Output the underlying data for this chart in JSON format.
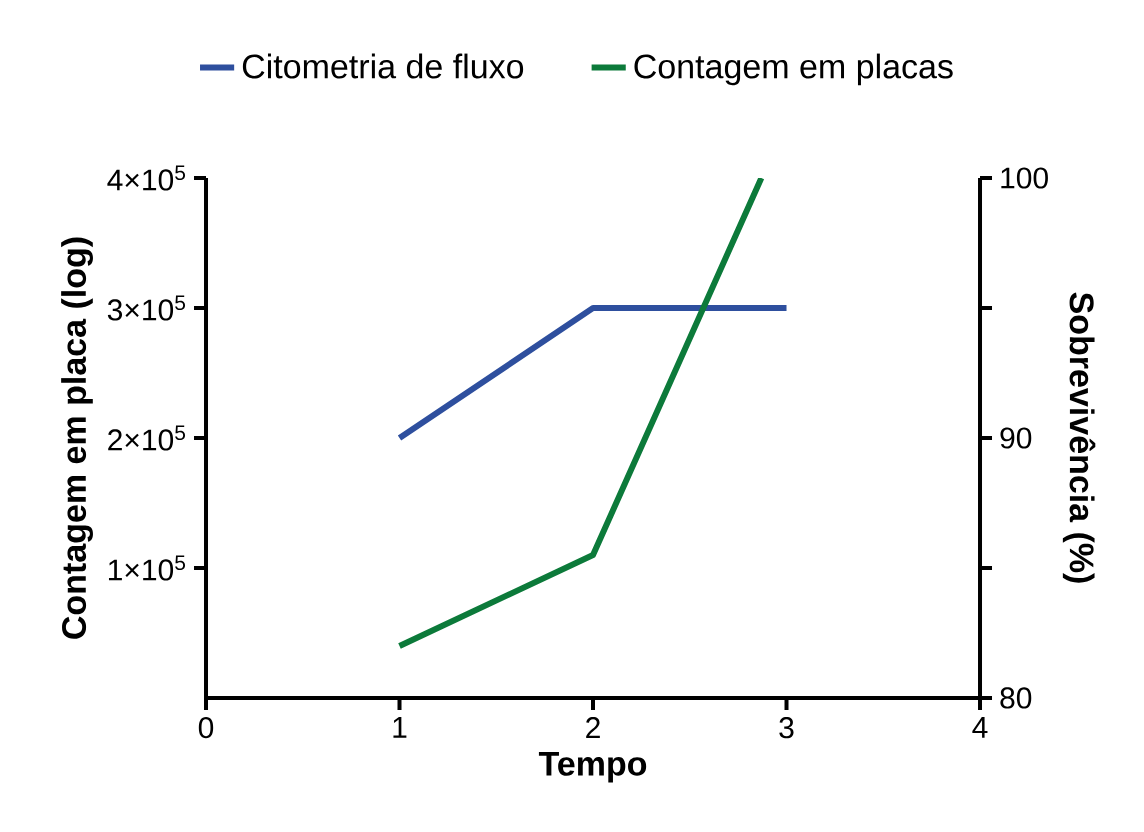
{
  "chart_data": {
    "type": "line",
    "xlabel": "Tempo",
    "ylabel": "Contagem em placa (log)",
    "y2label": "Sobrevivência (%)",
    "legend": "top",
    "xlim": [
      0,
      4
    ],
    "xticks": [
      0,
      1,
      2,
      3,
      4
    ],
    "ylim": [
      0,
      400000
    ],
    "yticks": [
      {
        "value": 100000,
        "label": "1×10$^{5}$"
      },
      {
        "value": 200000,
        "label": "2×10$^{5}$"
      },
      {
        "value": 300000,
        "label": "3×10$^{5}$"
      },
      {
        "value": 400000,
        "label": "4×10$^{5}$"
      }
    ],
    "y2lim": [
      80,
      100
    ],
    "y2ticks": [
      80,
      {
        "value": 85,
        "label": null
      },
      90,
      {
        "value": 95,
        "label": null
      },
      100
    ],
    "series": [
      {
        "name": "Citometria de fluxo",
        "axis": "y2",
        "color": "#2e4f9e",
        "x": [
          1,
          2,
          3
        ],
        "values": [
          90,
          95,
          95
        ]
      },
      {
        "name": "Contagem em placas",
        "axis": "y",
        "color": "#0c7a3a",
        "x": [
          1,
          2,
          2.87
        ],
        "values": [
          40000,
          110000,
          400000
        ]
      }
    ]
  }
}
